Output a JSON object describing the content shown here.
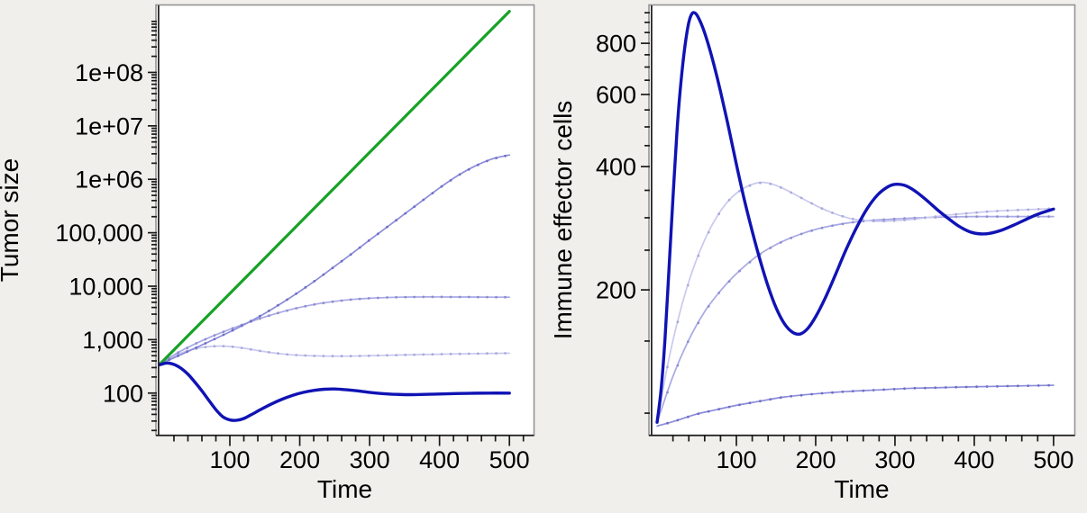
{
  "figure": {
    "background": "#f0efec",
    "axis_color": "#1a1a1a",
    "frame_color": "#949494",
    "plot_bg": "#ffffff"
  },
  "chart_data": [
    {
      "type": "line",
      "panel_name": "tumor-size-panel",
      "xlabel": "Time",
      "ylabel": "Tumor size",
      "y_scale": "log",
      "xlim": [
        -3.2,
        532
      ],
      "ylim": [
        18,
        1660000000
      ],
      "x_ticks": [
        {
          "v": 100,
          "label": "100"
        },
        {
          "v": 200,
          "label": "200"
        },
        {
          "v": 300,
          "label": "300"
        },
        {
          "v": 400,
          "label": "400"
        },
        {
          "v": 500,
          "label": "500"
        }
      ],
      "x_minor_step": 20,
      "y_ticks": [
        {
          "v": 100,
          "label": "100"
        },
        {
          "v": 1000,
          "label": "1,000"
        },
        {
          "v": 10000,
          "label": "10,000"
        },
        {
          "v": 100000,
          "label": "100,000"
        },
        {
          "v": 1000000,
          "label": "1e+06"
        },
        {
          "v": 10000000,
          "label": "1e+07"
        },
        {
          "v": 100000000,
          "label": "1e+08"
        }
      ],
      "y_minor": {
        "mode": "log"
      },
      "series": [
        {
          "name": "tumor-dormancy-lightest-blue",
          "color": "#c9c9ef",
          "width": 1.7,
          "marker": {
            "dt": 13,
            "r": 1.4,
            "color": "#a9a9de"
          },
          "points": [
            [
              0,
              350
            ],
            [
              15,
              452
            ],
            [
              30,
              560
            ],
            [
              45,
              650
            ],
            [
              60,
              715
            ],
            [
              75,
              752
            ],
            [
              90,
              758
            ],
            [
              105,
              735
            ],
            [
              120,
              692
            ],
            [
              140,
              625
            ],
            [
              160,
              570
            ],
            [
              180,
              532
            ],
            [
              200,
              510
            ],
            [
              220,
              498
            ],
            [
              240,
              492
            ],
            [
              260,
              491
            ],
            [
              280,
              494
            ],
            [
              300,
              500
            ],
            [
              325,
              509
            ],
            [
              350,
              518
            ],
            [
              380,
              528
            ],
            [
              410,
              537
            ],
            [
              440,
              545
            ],
            [
              470,
              552
            ],
            [
              500,
              558
            ]
          ]
        },
        {
          "name": "tumor-partial-control-light-blue",
          "color": "#a9a9e4",
          "width": 1.7,
          "marker": {
            "dt": 13,
            "r": 1.4,
            "color": "#8d8dd4"
          },
          "points": [
            [
              0,
              350
            ],
            [
              25,
              565
            ],
            [
              50,
              830
            ],
            [
              75,
              1160
            ],
            [
              100,
              1560
            ],
            [
              125,
              2060
            ],
            [
              150,
              2660
            ],
            [
              175,
              3320
            ],
            [
              200,
              4010
            ],
            [
              225,
              4660
            ],
            [
              250,
              5210
            ],
            [
              275,
              5660
            ],
            [
              300,
              5960
            ],
            [
              325,
              6150
            ],
            [
              350,
              6260
            ],
            [
              375,
              6300
            ],
            [
              400,
              6300
            ],
            [
              430,
              6280
            ],
            [
              460,
              6250
            ],
            [
              500,
              6220
            ]
          ]
        },
        {
          "name": "tumor-escape-periwinkle",
          "color": "#8c8cd9",
          "width": 1.7,
          "marker": {
            "dt": 13,
            "r": 1.4,
            "color": "#6f6fc8"
          },
          "points": [
            [
              0,
              350
            ],
            [
              25,
              490
            ],
            [
              50,
              690
            ],
            [
              75,
              980
            ],
            [
              100,
              1400
            ],
            [
              125,
              2050
            ],
            [
              150,
              3100
            ],
            [
              175,
              4900
            ],
            [
              200,
              8000
            ],
            [
              225,
              13500
            ],
            [
              250,
              23500
            ],
            [
              275,
              41000
            ],
            [
              300,
              73000
            ],
            [
              325,
              128000
            ],
            [
              350,
              225000
            ],
            [
              375,
              395000
            ],
            [
              400,
              690000
            ],
            [
              425,
              1150000
            ],
            [
              450,
              1750000
            ],
            [
              475,
              2400000
            ],
            [
              500,
              2850000
            ]
          ]
        },
        {
          "name": "tumor-uncontrolled-growth-green",
          "color": "#17a226",
          "width": 3.2,
          "marker": null,
          "points": [
            [
              0,
              350
            ],
            [
              50,
              1600
            ],
            [
              100,
              7300
            ],
            [
              150,
              33400
            ],
            [
              200,
              153000
            ],
            [
              250,
              698000
            ],
            [
              300,
              3190000
            ],
            [
              350,
              14600000
            ],
            [
              400,
              66600000
            ],
            [
              450,
              304000000
            ],
            [
              500,
              1390000000
            ]
          ]
        },
        {
          "name": "tumor-regression-dark-blue",
          "color": "#1013b4",
          "width": 3.4,
          "marker": null,
          "points": [
            [
              0,
              340
            ],
            [
              5,
              356
            ],
            [
              10,
              364
            ],
            [
              15,
              359
            ],
            [
              22,
              336
            ],
            [
              30,
              292
            ],
            [
              40,
              226
            ],
            [
              50,
              160
            ],
            [
              60,
              110
            ],
            [
              70,
              73
            ],
            [
              80,
              49
            ],
            [
              90,
              36
            ],
            [
              100,
              31.5
            ],
            [
              110,
              31
            ],
            [
              120,
              33.5
            ],
            [
              130,
              39
            ],
            [
              145,
              50
            ],
            [
              160,
              63
            ],
            [
              175,
              77
            ],
            [
              190,
              91
            ],
            [
              205,
              103
            ],
            [
              220,
              112
            ],
            [
              235,
              118
            ],
            [
              250,
              119.5
            ],
            [
              265,
              116
            ],
            [
              280,
              111
            ],
            [
              295,
              105
            ],
            [
              310,
              100
            ],
            [
              325,
              96.5
            ],
            [
              340,
              94.5
            ],
            [
              360,
              93.5
            ],
            [
              385,
              95
            ],
            [
              410,
              97
            ],
            [
              440,
              99
            ],
            [
              470,
              100
            ],
            [
              500,
              100
            ]
          ]
        }
      ]
    },
    {
      "type": "line",
      "panel_name": "immune-effector-panel",
      "xlabel": "Time",
      "ylabel": "Immune effector cells",
      "y_scale": "log",
      "xlim": [
        -8,
        524
      ],
      "ylim": [
        89.5,
        980
      ],
      "x_ticks": [
        {
          "v": 100,
          "label": "100"
        },
        {
          "v": 200,
          "label": "200"
        },
        {
          "v": 300,
          "label": "300"
        },
        {
          "v": 400,
          "label": "400"
        },
        {
          "v": 500,
          "label": "500"
        }
      ],
      "x_minor_step": 20,
      "y_ticks": [
        {
          "v": 200,
          "label": "200"
        },
        {
          "v": 400,
          "label": "400"
        },
        {
          "v": 600,
          "label": "600"
        },
        {
          "v": 800,
          "label": "800"
        }
      ],
      "y_minor": {
        "mode": "step",
        "step": 50
      },
      "series": [
        {
          "name": "immune-weak-periwinkle",
          "color": "#8c8cd9",
          "width": 1.7,
          "marker": {
            "dt": 13,
            "r": 1.4,
            "color": "#6f6fc8"
          },
          "points": [
            [
              0,
              93
            ],
            [
              25,
              96
            ],
            [
              50,
              99.5
            ],
            [
              75,
              102
            ],
            [
              100,
              104.5
            ],
            [
              130,
              107
            ],
            [
              160,
              109.5
            ],
            [
              200,
              111.5
            ],
            [
              240,
              113
            ],
            [
              280,
              114
            ],
            [
              320,
              115
            ],
            [
              360,
              115.5
            ],
            [
              400,
              116
            ],
            [
              450,
              116.5
            ],
            [
              500,
              117
            ]
          ]
        },
        {
          "name": "immune-moderate-light-blue",
          "color": "#a9a9e4",
          "width": 1.7,
          "marker": {
            "dt": 13,
            "r": 1.4,
            "color": "#8d8dd4"
          },
          "points": [
            [
              0,
              95
            ],
            [
              20,
              123
            ],
            [
              40,
              151
            ],
            [
              60,
              177
            ],
            [
              80,
              199
            ],
            [
              100,
              219
            ],
            [
              125,
              241
            ],
            [
              150,
              258
            ],
            [
              175,
              271
            ],
            [
              200,
              281
            ],
            [
              225,
              288
            ],
            [
              250,
              293
            ],
            [
              275,
              296
            ],
            [
              300,
              298
            ],
            [
              330,
              300
            ],
            [
              360,
              301
            ],
            [
              400,
              302
            ],
            [
              450,
              302
            ],
            [
              500,
              302
            ]
          ]
        },
        {
          "name": "immune-overshoot-lightest-blue",
          "color": "#c9c9ef",
          "width": 1.7,
          "marker": {
            "dt": 13,
            "r": 1.4,
            "color": "#a9a9de"
          },
          "points": [
            [
              0,
              95
            ],
            [
              15,
              136
            ],
            [
              30,
              180
            ],
            [
              45,
              224
            ],
            [
              60,
              265
            ],
            [
              75,
              301
            ],
            [
              90,
              330
            ],
            [
              105,
              350
            ],
            [
              120,
              362
            ],
            [
              133,
              366
            ],
            [
              146,
              362
            ],
            [
              160,
              353
            ],
            [
              175,
              341
            ],
            [
              190,
              329
            ],
            [
              205,
              318
            ],
            [
              220,
              309
            ],
            [
              235,
              302
            ],
            [
              250,
              297
            ],
            [
              265,
              295
            ],
            [
              280,
              294
            ],
            [
              300,
              295
            ],
            [
              320,
              297
            ],
            [
              345,
              301
            ],
            [
              370,
              305
            ],
            [
              395,
              308
            ],
            [
              420,
              311
            ],
            [
              450,
              313
            ],
            [
              500,
              316
            ]
          ]
        },
        {
          "name": "immune-strong-oscillating-dark-blue",
          "color": "#1013b4",
          "width": 3.4,
          "marker": null,
          "points": [
            [
              0,
              95
            ],
            [
              5,
              114
            ],
            [
              10,
              152
            ],
            [
              15,
              225
            ],
            [
              20,
              335
            ],
            [
              25,
              485
            ],
            [
              28,
              580
            ],
            [
              32,
              700
            ],
            [
              36,
              810
            ],
            [
              40,
              900
            ],
            [
              44,
              945
            ],
            [
              48,
              948
            ],
            [
              52,
              925
            ],
            [
              58,
              870
            ],
            [
              65,
              790
            ],
            [
              72,
              705
            ],
            [
              80,
              610
            ],
            [
              90,
              500
            ],
            [
              100,
              405
            ],
            [
              110,
              332
            ],
            [
              120,
              278
            ],
            [
              130,
              236
            ],
            [
              140,
              204
            ],
            [
              150,
              181
            ],
            [
              160,
              166
            ],
            [
              170,
              158
            ],
            [
              180,
              156
            ],
            [
              190,
              161
            ],
            [
              200,
              172
            ],
            [
              212,
              191
            ],
            [
              225,
              218
            ],
            [
              238,
              250
            ],
            [
              252,
              285
            ],
            [
              265,
              316
            ],
            [
              278,
              341
            ],
            [
              290,
              356
            ],
            [
              300,
              362
            ],
            [
              312,
              360
            ],
            [
              325,
              349
            ],
            [
              340,
              331
            ],
            [
              355,
              312
            ],
            [
              370,
              296
            ],
            [
              382,
              285
            ],
            [
              395,
              277
            ],
            [
              408,
              274
            ],
            [
              420,
              275
            ],
            [
              435,
              280
            ],
            [
              450,
              288
            ],
            [
              465,
              297
            ],
            [
              480,
              306
            ],
            [
              500,
              315
            ]
          ]
        }
      ]
    }
  ]
}
